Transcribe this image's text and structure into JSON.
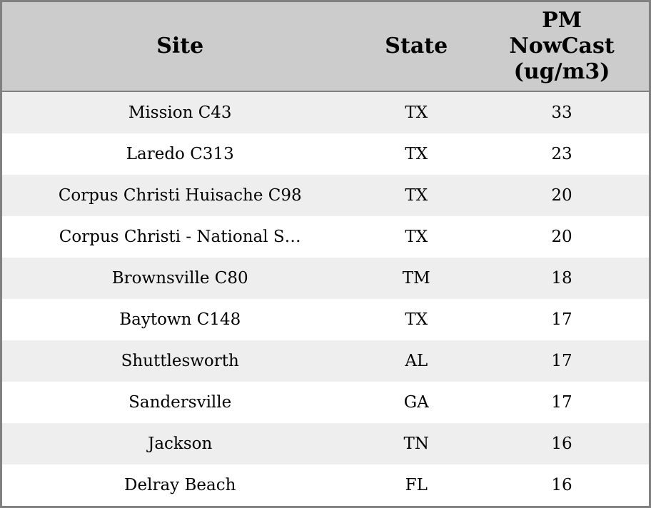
{
  "colors": {
    "header_bg": "#cccccc",
    "row_alt_bg": "#eeeeee",
    "row_bg": "#ffffff",
    "border": "#808080",
    "text": "#000000"
  },
  "table": {
    "columns": [
      {
        "id": "site",
        "label": "Site"
      },
      {
        "id": "state",
        "label": "State"
      },
      {
        "id": "pm_nowcast",
        "label": "PM NowCast (ug/m3)"
      }
    ],
    "rows": [
      {
        "site": "Mission C43",
        "state": "TX",
        "pm_nowcast": "33"
      },
      {
        "site": "Laredo C313",
        "state": "TX",
        "pm_nowcast": "23"
      },
      {
        "site": "Corpus Christi Huisache C98",
        "state": "TX",
        "pm_nowcast": "20"
      },
      {
        "site": "Corpus Christi - National S…",
        "state": "TX",
        "pm_nowcast": "20"
      },
      {
        "site": "Brownsville C80",
        "state": "TM",
        "pm_nowcast": "18"
      },
      {
        "site": "Baytown C148",
        "state": "TX",
        "pm_nowcast": "17"
      },
      {
        "site": "Shuttlesworth",
        "state": "AL",
        "pm_nowcast": "17"
      },
      {
        "site": "Sandersville",
        "state": "GA",
        "pm_nowcast": "17"
      },
      {
        "site": "Jackson",
        "state": "TN",
        "pm_nowcast": "16"
      },
      {
        "site": "Delray Beach",
        "state": "FL",
        "pm_nowcast": "16"
      }
    ]
  },
  "chart_data": {
    "type": "table",
    "title": "",
    "columns": [
      "Site",
      "State",
      "PM NowCast (ug/m3)"
    ],
    "rows": [
      [
        "Mission C43",
        "TX",
        33
      ],
      [
        "Laredo C313",
        "TX",
        23
      ],
      [
        "Corpus Christi Huisache C98",
        "TX",
        20
      ],
      [
        "Corpus Christi - National S…",
        "TX",
        20
      ],
      [
        "Brownsville C80",
        "TM",
        18
      ],
      [
        "Baytown C148",
        "TX",
        17
      ],
      [
        "Shuttlesworth",
        "AL",
        17
      ],
      [
        "Sandersville",
        "GA",
        17
      ],
      [
        "Jackson",
        "TN",
        16
      ],
      [
        "Delray Beach",
        "FL",
        16
      ]
    ],
    "layout_hints": {
      "zebra_striping": true,
      "header_align": "center",
      "cell_align": "center",
      "grid": "outer-border-and-header-separator-only"
    }
  }
}
